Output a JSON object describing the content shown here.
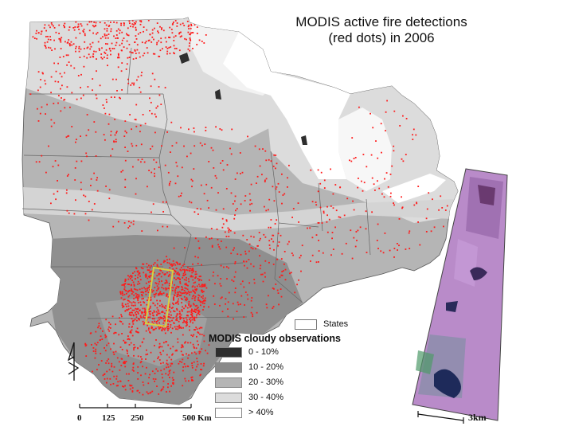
{
  "title": {
    "line1": "MODIS active fire detections",
    "line2": "(red dots) in 2006"
  },
  "legend": {
    "title": "MODIS cloudy observations",
    "states_label": "States",
    "classes": [
      {
        "label": "0 - 10%",
        "color": "#2e2e2e"
      },
      {
        "label": "10 - 20%",
        "color": "#8a8a8a"
      },
      {
        "label": "20 - 30%",
        "color": "#b5b5b5"
      },
      {
        "label": "30 - 40%",
        "color": "#dcdcdc"
      },
      {
        "label": "> 40%",
        "color": "#ffffff"
      }
    ]
  },
  "scale_bar": {
    "ticks": [
      "0",
      "125",
      "250",
      "500"
    ],
    "unit": "Km"
  },
  "north_arrow": {
    "letter": "N"
  },
  "inset": {
    "scale_label": "3km"
  },
  "colors": {
    "fire_dots": "#ff1a1a",
    "box_outline": "#d8d040",
    "state_lines": "#666666"
  }
}
